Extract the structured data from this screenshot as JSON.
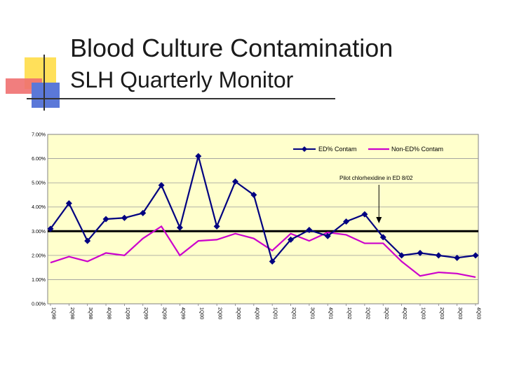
{
  "slide": {
    "title_line1": "Blood Culture Contamination",
    "title_line2": "SLH Quarterly Monitor",
    "colors": {
      "yellow": "#FFE05A",
      "red": "#F07070",
      "blue": "#5B78D8",
      "rule": "#333333"
    }
  },
  "chart_data": {
    "type": "line",
    "title": "",
    "xlabel": "",
    "ylabel": "",
    "ylim": [
      0,
      7
    ],
    "y_tick_labels": [
      "0.00%",
      "1.00%",
      "2.00%",
      "3.00%",
      "4.00%",
      "5.00%",
      "6.00%",
      "7.00%"
    ],
    "categories": [
      "1Q98",
      "2Q98",
      "3Q98",
      "4Q98",
      "1Q99",
      "2Q99",
      "3Q99",
      "4Q99",
      "1Q00",
      "2Q00",
      "3Q00",
      "4Q00",
      "1Q01",
      "2Q01",
      "3Q01",
      "4Q01",
      "1Q02",
      "2Q02",
      "3Q02",
      "4Q02",
      "1Q03",
      "2Q03",
      "3Q03",
      "4Q03"
    ],
    "series": [
      {
        "name": "ED% Contam",
        "color": "#000080",
        "marker": "diamond",
        "values": [
          3.1,
          4.15,
          2.6,
          3.5,
          3.55,
          3.75,
          4.9,
          3.15,
          6.1,
          3.2,
          5.05,
          4.5,
          1.75,
          2.65,
          3.05,
          2.8,
          3.4,
          3.7,
          2.75,
          2.0,
          2.1,
          2.0,
          1.9,
          2.0
        ]
      },
      {
        "name": "Non-ED% Contam",
        "color": "#CC00CC",
        "marker": "none",
        "values": [
          1.7,
          1.95,
          1.75,
          2.1,
          2.0,
          2.7,
          3.2,
          2.0,
          2.6,
          2.65,
          2.9,
          2.7,
          2.2,
          2.9,
          2.6,
          2.95,
          2.85,
          2.5,
          2.5,
          1.75,
          1.15,
          1.3,
          1.25,
          1.1
        ]
      }
    ],
    "reference_line": {
      "value": 3.0,
      "color": "#000000"
    },
    "annotation": {
      "text": "Pilot chlorhexidine in ED 8/02",
      "target_category": "3Q02"
    },
    "legend": "top-right",
    "plot_background": "#FFFFCC",
    "grid": true
  }
}
